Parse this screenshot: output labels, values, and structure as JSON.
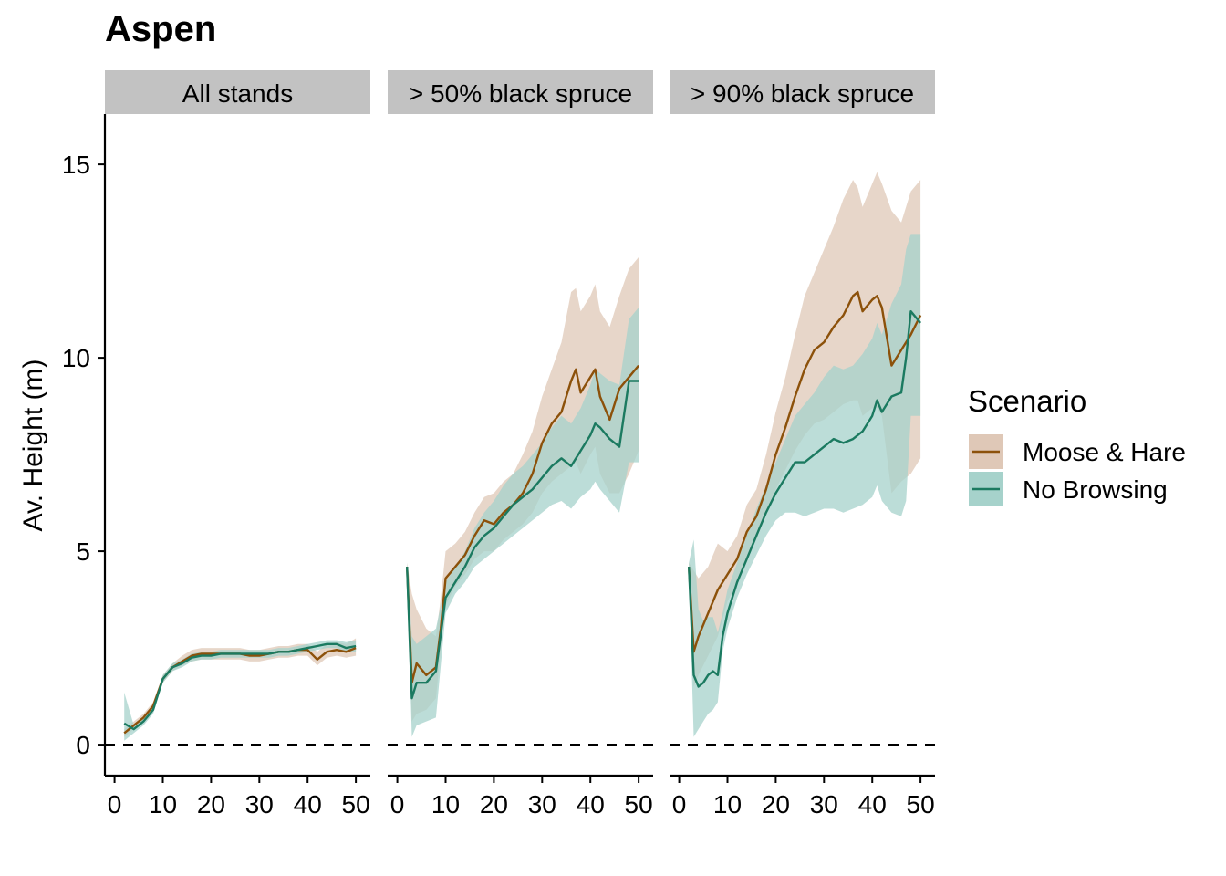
{
  "chart_data": {
    "type": "line",
    "title": "Aspen",
    "ylabel": "Av. Height (m)",
    "xlabel": "",
    "xlim": [
      -2,
      53
    ],
    "ylim": [
      -0.8,
      16.3
    ],
    "x_ticks": [
      0,
      10,
      20,
      30,
      40,
      50
    ],
    "y_ticks": [
      0,
      5,
      10,
      15
    ],
    "reference_line": {
      "y": 0,
      "style": "dashed"
    },
    "legend": {
      "title": "Scenario",
      "placement": "right",
      "entries": [
        {
          "label": "Moose & Hare",
          "color": "#8c510a",
          "fill": "#dfc8b7"
        },
        {
          "label": "No Browsing",
          "color": "#1b7a60",
          "fill": "#a6d2cb"
        }
      ]
    },
    "panels": [
      {
        "label": "All stands",
        "series": [
          {
            "name": "Moose & Hare",
            "x": [
              2,
              4,
              6,
              8,
              10,
              12,
              14,
              16,
              18,
              20,
              22,
              24,
              26,
              28,
              30,
              32,
              34,
              36,
              38,
              40,
              42,
              44,
              46,
              48,
              50
            ],
            "y": [
              0.3,
              0.5,
              0.7,
              1.0,
              1.7,
              2.0,
              2.15,
              2.3,
              2.35,
              2.35,
              2.35,
              2.35,
              2.35,
              2.3,
              2.3,
              2.35,
              2.4,
              2.4,
              2.45,
              2.45,
              2.2,
              2.4,
              2.45,
              2.4,
              2.5
            ],
            "lower": [
              0.2,
              0.4,
              0.6,
              0.9,
              1.6,
              1.9,
              2.05,
              2.15,
              2.2,
              2.2,
              2.2,
              2.2,
              2.2,
              2.15,
              2.15,
              2.2,
              2.25,
              2.25,
              2.3,
              2.3,
              2.05,
              2.25,
              2.3,
              2.25,
              2.3
            ],
            "upper": [
              0.4,
              0.6,
              0.8,
              1.1,
              1.8,
              2.1,
              2.3,
              2.45,
              2.5,
              2.5,
              2.5,
              2.5,
              2.5,
              2.45,
              2.45,
              2.5,
              2.55,
              2.55,
              2.6,
              2.6,
              2.4,
              2.6,
              2.65,
              2.6,
              2.75
            ]
          },
          {
            "name": "No Browsing",
            "x": [
              2,
              4,
              6,
              8,
              10,
              12,
              14,
              16,
              18,
              20,
              22,
              24,
              26,
              28,
              30,
              32,
              34,
              36,
              38,
              40,
              42,
              44,
              46,
              48,
              50
            ],
            "y": [
              0.55,
              0.4,
              0.6,
              0.9,
              1.7,
              2.0,
              2.1,
              2.25,
              2.3,
              2.3,
              2.35,
              2.35,
              2.35,
              2.35,
              2.35,
              2.35,
              2.4,
              2.4,
              2.45,
              2.5,
              2.55,
              2.6,
              2.6,
              2.5,
              2.55
            ],
            "lower": [
              0.1,
              0.3,
              0.5,
              0.8,
              1.6,
              1.9,
              2.0,
              2.15,
              2.2,
              2.2,
              2.25,
              2.25,
              2.25,
              2.25,
              2.25,
              2.25,
              2.3,
              2.3,
              2.35,
              2.4,
              2.45,
              2.5,
              2.5,
              2.4,
              2.4
            ],
            "upper": [
              1.35,
              0.5,
              0.7,
              1.0,
              1.8,
              2.1,
              2.2,
              2.35,
              2.4,
              2.4,
              2.45,
              2.45,
              2.45,
              2.45,
              2.45,
              2.45,
              2.5,
              2.5,
              2.55,
              2.6,
              2.65,
              2.7,
              2.7,
              2.65,
              2.7
            ]
          }
        ]
      },
      {
        "label": "> 50% black spruce",
        "series": [
          {
            "name": "Moose & Hare",
            "x": [
              2,
              3,
              4,
              6,
              8,
              9,
              10,
              12,
              14,
              16,
              18,
              20,
              22,
              24,
              26,
              28,
              30,
              32,
              34,
              36,
              37,
              38,
              40,
              41,
              42,
              44,
              46,
              48,
              50
            ],
            "y": [
              4.6,
              1.6,
              2.1,
              1.8,
              2.0,
              3.0,
              4.3,
              4.6,
              4.9,
              5.4,
              5.8,
              5.7,
              6.0,
              6.2,
              6.5,
              7.0,
              7.8,
              8.3,
              8.6,
              9.4,
              9.7,
              9.1,
              9.5,
              9.7,
              9.0,
              8.4,
              9.2,
              9.5,
              9.8
            ],
            "lower": [
              4.5,
              0.6,
              0.8,
              0.9,
              1.2,
              2.5,
              3.6,
              4.1,
              4.4,
              4.8,
              5.0,
              5.0,
              5.3,
              5.5,
              5.7,
              6.0,
              6.5,
              6.8,
              7.0,
              7.2,
              7.3,
              7.0,
              7.5,
              7.7,
              7.0,
              6.5,
              6.5,
              7.0,
              7.6
            ],
            "upper": [
              4.7,
              3.9,
              3.5,
              3.0,
              2.8,
              3.8,
              5.0,
              5.2,
              5.5,
              6.0,
              6.4,
              6.5,
              6.8,
              7.0,
              7.5,
              8.1,
              9.0,
              9.7,
              10.4,
              11.7,
              11.8,
              11.2,
              11.6,
              11.9,
              11.2,
              10.8,
              11.6,
              12.3,
              12.6
            ]
          },
          {
            "name": "No Browsing",
            "x": [
              2,
              3,
              4,
              6,
              8,
              10,
              12,
              14,
              16,
              18,
              20,
              22,
              24,
              26,
              28,
              30,
              32,
              34,
              36,
              38,
              40,
              41,
              42,
              44,
              46,
              48,
              50
            ],
            "y": [
              4.6,
              1.2,
              1.6,
              1.6,
              1.9,
              3.8,
              4.2,
              4.6,
              5.1,
              5.4,
              5.6,
              5.9,
              6.2,
              6.4,
              6.6,
              6.9,
              7.2,
              7.4,
              7.2,
              7.6,
              8.0,
              8.3,
              8.2,
              7.9,
              7.7,
              9.4,
              9.4
            ],
            "lower": [
              4.5,
              0.2,
              0.5,
              0.6,
              0.7,
              3.4,
              3.9,
              4.2,
              4.6,
              4.8,
              5.0,
              5.2,
              5.4,
              5.6,
              5.8,
              6.0,
              6.2,
              6.3,
              6.1,
              6.4,
              6.6,
              6.8,
              6.6,
              6.3,
              6.0,
              7.3,
              7.3
            ],
            "upper": [
              4.7,
              2.8,
              2.6,
              2.8,
              3.0,
              4.2,
              4.6,
              5.0,
              5.6,
              6.0,
              6.3,
              6.7,
              7.0,
              7.2,
              7.5,
              7.8,
              8.2,
              8.5,
              8.3,
              8.7,
              9.3,
              9.7,
              9.6,
              9.4,
              9.3,
              11.0,
              11.3
            ]
          }
        ]
      },
      {
        "label": "> 90% black spruce",
        "series": [
          {
            "name": "Moose & Hare",
            "x": [
              2,
              3,
              4,
              6,
              8,
              10,
              12,
              14,
              16,
              18,
              20,
              22,
              24,
              26,
              28,
              30,
              32,
              34,
              36,
              37,
              38,
              40,
              41,
              42,
              44,
              46,
              48,
              50
            ],
            "y": [
              4.6,
              2.4,
              2.8,
              3.4,
              4.0,
              4.4,
              4.8,
              5.5,
              5.9,
              6.6,
              7.5,
              8.2,
              9.0,
              9.7,
              10.2,
              10.4,
              10.8,
              11.1,
              11.6,
              11.7,
              11.2,
              11.5,
              11.6,
              11.3,
              9.8,
              10.2,
              10.6,
              11.1
            ],
            "lower": [
              4.5,
              1.5,
              1.8,
              2.3,
              2.8,
              3.7,
              4.2,
              4.8,
              5.3,
              6.0,
              6.6,
              7.1,
              7.6,
              8.0,
              8.3,
              8.4,
              8.6,
              8.8,
              8.9,
              8.9,
              8.5,
              8.7,
              8.7,
              8.5,
              6.5,
              6.8,
              7.0,
              7.4
            ],
            "upper": [
              4.7,
              4.5,
              4.3,
              4.6,
              5.2,
              5.0,
              5.4,
              6.2,
              6.6,
              7.5,
              8.6,
              9.5,
              10.6,
              11.6,
              12.2,
              12.8,
              13.4,
              14.1,
              14.6,
              14.4,
              13.9,
              14.5,
              14.8,
              14.5,
              13.8,
              13.5,
              14.3,
              14.6
            ]
          },
          {
            "name": "No Browsing",
            "x": [
              2,
              3,
              4,
              5,
              6,
              7,
              8,
              9,
              10,
              12,
              14,
              16,
              18,
              20,
              22,
              24,
              26,
              28,
              30,
              32,
              34,
              36,
              38,
              40,
              41,
              42,
              44,
              46,
              47,
              48,
              50
            ],
            "y": [
              4.6,
              1.8,
              1.5,
              1.6,
              1.8,
              1.9,
              1.8,
              2.8,
              3.4,
              4.2,
              4.8,
              5.4,
              6.0,
              6.5,
              6.9,
              7.3,
              7.3,
              7.5,
              7.7,
              7.9,
              7.8,
              7.9,
              8.1,
              8.5,
              8.9,
              8.6,
              9.0,
              9.1,
              10.0,
              11.2,
              10.9
            ],
            "lower": [
              4.5,
              0.2,
              0.4,
              0.6,
              0.8,
              0.9,
              1.1,
              2.4,
              3.0,
              3.8,
              4.4,
              4.9,
              5.4,
              5.8,
              6.0,
              6.0,
              5.9,
              6.0,
              6.1,
              6.1,
              6.0,
              6.1,
              6.2,
              6.4,
              6.7,
              6.3,
              6.0,
              5.9,
              6.3,
              8.5,
              8.5
            ],
            "upper": [
              4.7,
              5.3,
              3.5,
              3.2,
              3.3,
              3.3,
              2.9,
              3.4,
              4.0,
              4.7,
              5.4,
              6.1,
              6.7,
              7.3,
              7.9,
              8.5,
              8.8,
              9.1,
              9.5,
              9.8,
              9.7,
              9.8,
              10.1,
              10.5,
              10.9,
              10.6,
              11.4,
              11.9,
              12.8,
              13.2,
              13.2
            ]
          }
        ]
      }
    ]
  }
}
